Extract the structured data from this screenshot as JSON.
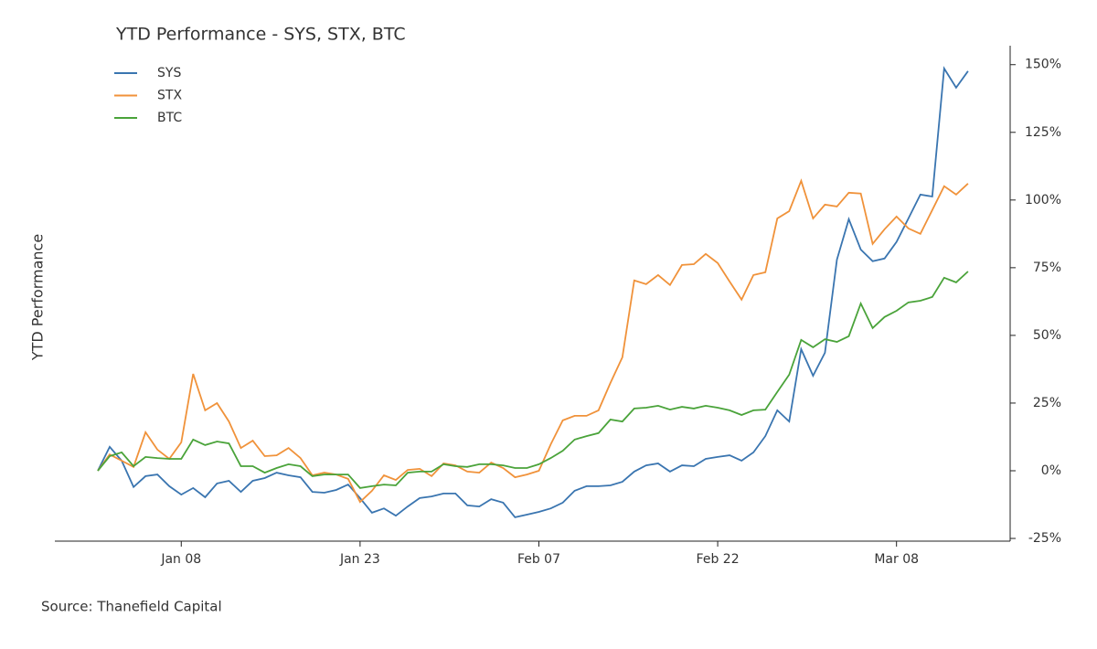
{
  "chart_data": {
    "type": "line",
    "title": "YTD Performance - SYS, STX, BTC",
    "y_label": "YTD Performance",
    "source": "Source: Thanefield Capital",
    "categories": [
      "Jan 01",
      "Jan 02",
      "Jan 03",
      "Jan 04",
      "Jan 05",
      "Jan 06",
      "Jan 07",
      "Jan 08",
      "Jan 09",
      "Jan 10",
      "Jan 11",
      "Jan 12",
      "Jan 13",
      "Jan 14",
      "Jan 15",
      "Jan 16",
      "Jan 17",
      "Jan 18",
      "Jan 19",
      "Jan 20",
      "Jan 21",
      "Jan 22",
      "Jan 23",
      "Jan 24",
      "Jan 25",
      "Jan 26",
      "Jan 27",
      "Jan 28",
      "Jan 29",
      "Jan 30",
      "Jan 31",
      "Feb 01",
      "Feb 02",
      "Feb 03",
      "Feb 04",
      "Feb 05",
      "Feb 06",
      "Feb 07",
      "Feb 08",
      "Feb 09",
      "Feb 10",
      "Feb 11",
      "Feb 12",
      "Feb 13",
      "Feb 14",
      "Feb 15",
      "Feb 16",
      "Feb 17",
      "Feb 18",
      "Feb 19",
      "Feb 20",
      "Feb 21",
      "Feb 22",
      "Feb 23",
      "Feb 24",
      "Feb 25",
      "Feb 26",
      "Feb 27",
      "Feb 28",
      "Feb 29",
      "Mar 01",
      "Mar 02",
      "Mar 03",
      "Mar 04",
      "Mar 05",
      "Mar 06",
      "Mar 07",
      "Mar 08",
      "Mar 09",
      "Mar 10",
      "Mar 11",
      "Mar 12",
      "Mar 13",
      "Mar 14"
    ],
    "xticks": [
      "Jan 08",
      "Jan 23",
      "Feb 07",
      "Feb 22",
      "Mar 08"
    ],
    "series": [
      {
        "name": "SYS",
        "color": "#3a75b0",
        "values": [
          0,
          8.8,
          3.7,
          -6,
          -2,
          -1.4,
          -5.7,
          -8.8,
          -6.4,
          -9.8,
          -4.7,
          -3.7,
          -7.8,
          -3.7,
          -2.7,
          -0.7,
          -1.7,
          -2.4,
          -7.8,
          -8.1,
          -7.1,
          -5.1,
          -10.1,
          -15.5,
          -13.9,
          -16.6,
          -13.2,
          -10.1,
          -9.5,
          -8.4,
          -8.4,
          -12.8,
          -13.2,
          -10.5,
          -11.8,
          -17.2,
          -16.2,
          -15.2,
          -13.9,
          -11.8,
          -7.4,
          -5.7,
          -5.7,
          -5.4,
          -4.1,
          -0.3,
          2,
          2.7,
          -0.3,
          2,
          1.7,
          4.4,
          5.1,
          5.7,
          3.7,
          6.8,
          12.8,
          22.3,
          18.2,
          44.9,
          35.1,
          43.6,
          78,
          92.9,
          81.7,
          77.4,
          78.4,
          84.5,
          93.2,
          102,
          101.3,
          148.6,
          141.5,
          147.6
        ]
      },
      {
        "name": "STX",
        "color": "#f0923a",
        "values": [
          0,
          6,
          3.7,
          1.4,
          14.2,
          7.8,
          4.4,
          10.5,
          35.8,
          22.3,
          25,
          18.2,
          8.4,
          11.1,
          5.4,
          5.7,
          8.4,
          4.7,
          -1.7,
          -0.7,
          -1.4,
          -3,
          -11.5,
          -7.4,
          -1.7,
          -3.4,
          0.3,
          0.7,
          -2,
          2.7,
          2,
          -0.3,
          -0.7,
          3,
          1,
          -2.4,
          -1.4,
          0,
          9.8,
          18.6,
          20.3,
          20.3,
          22.3,
          32.4,
          41.9,
          70.3,
          68.9,
          72.3,
          68.6,
          76,
          76.3,
          80.1,
          76.7,
          69.9,
          63.2,
          72.3,
          73.3,
          93.2,
          95.9,
          107.1,
          93.2,
          98.3,
          97.6,
          102.7,
          102.4,
          83.8,
          89.2,
          93.9,
          89.5,
          87.5,
          96.3,
          105.1,
          102,
          106.1
        ]
      },
      {
        "name": "BTC",
        "color": "#4aa33a",
        "values": [
          0,
          5.4,
          6.8,
          1.7,
          5.1,
          4.7,
          4.4,
          4.4,
          11.5,
          9.5,
          10.8,
          10.1,
          1.7,
          1.7,
          -0.7,
          1,
          2.4,
          1.7,
          -2,
          -1.4,
          -1.4,
          -1.4,
          -6.4,
          -5.7,
          -5.1,
          -5.4,
          -0.7,
          -0.3,
          -0.3,
          2.4,
          1.7,
          1.4,
          2.4,
          2.4,
          2,
          1,
          1,
          2.4,
          4.7,
          7.4,
          11.5,
          12.8,
          13.9,
          18.9,
          18.2,
          23,
          23.3,
          24,
          22.6,
          23.6,
          23,
          24,
          23.3,
          22.3,
          20.6,
          22.3,
          22.6,
          29.1,
          35.5,
          48.3,
          45.6,
          48.6,
          47.6,
          49.7,
          61.8,
          52.7,
          56.8,
          59.1,
          62.2,
          62.8,
          64.2,
          71.3,
          69.6,
          73.6
        ]
      }
    ],
    "ylim": [
      -26,
      157
    ],
    "yticks": [
      {
        "value": -25,
        "label": "-25%"
      },
      {
        "value": 0,
        "label": "0%"
      },
      {
        "value": 25,
        "label": "25%"
      },
      {
        "value": 50,
        "label": "50%"
      },
      {
        "value": 75,
        "label": "75%"
      },
      {
        "value": 100,
        "label": "100%"
      },
      {
        "value": 125,
        "label": "125%"
      },
      {
        "value": 150,
        "label": "150%"
      }
    ],
    "legend": "upper left"
  }
}
